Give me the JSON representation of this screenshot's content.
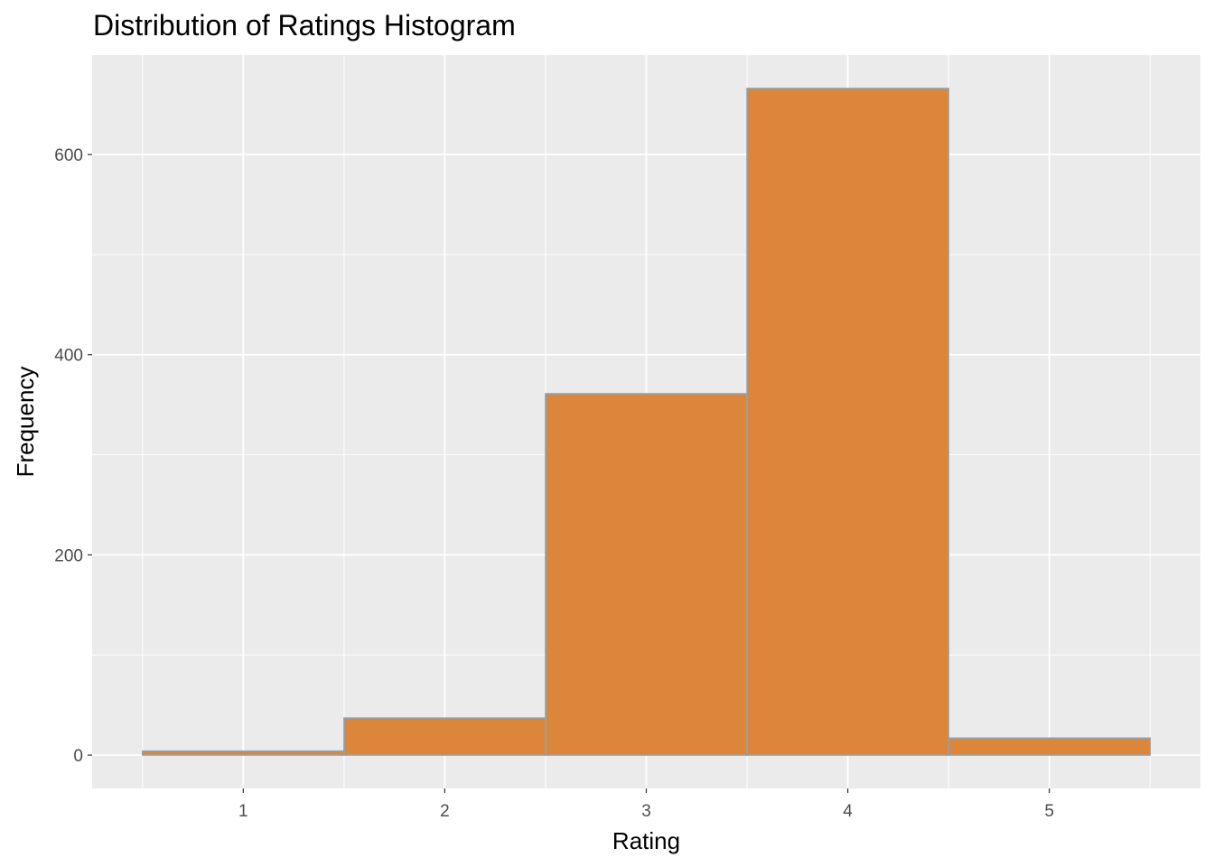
{
  "chart_data": {
    "type": "bar",
    "title": "Distribution of Ratings Histogram",
    "xlabel": "Rating",
    "ylabel": "Frequency",
    "bins": [
      {
        "x": 1,
        "x_start": 0.5,
        "x_end": 1.5,
        "value": 4
      },
      {
        "x": 2,
        "x_start": 1.5,
        "x_end": 2.5,
        "value": 37
      },
      {
        "x": 3,
        "x_start": 2.5,
        "x_end": 3.5,
        "value": 361
      },
      {
        "x": 4,
        "x_start": 3.5,
        "x_end": 4.5,
        "value": 666
      },
      {
        "x": 5,
        "x_start": 4.5,
        "x_end": 5.5,
        "value": 17
      }
    ],
    "xlim": [
      0.25,
      5.75
    ],
    "ylim": [
      -33.3,
      699.3
    ],
    "x_ticks": [
      "1",
      "2",
      "3",
      "4",
      "5"
    ],
    "y_ticks": [
      "0",
      "200",
      "400",
      "600"
    ],
    "grid": true,
    "colors": {
      "bar_fill": "#DC863B",
      "bar_outline": "#8EA3B0",
      "panel_background": "#EBEBEB",
      "grid": "#FFFFFF",
      "tick_label": "#4D4D4D"
    }
  }
}
